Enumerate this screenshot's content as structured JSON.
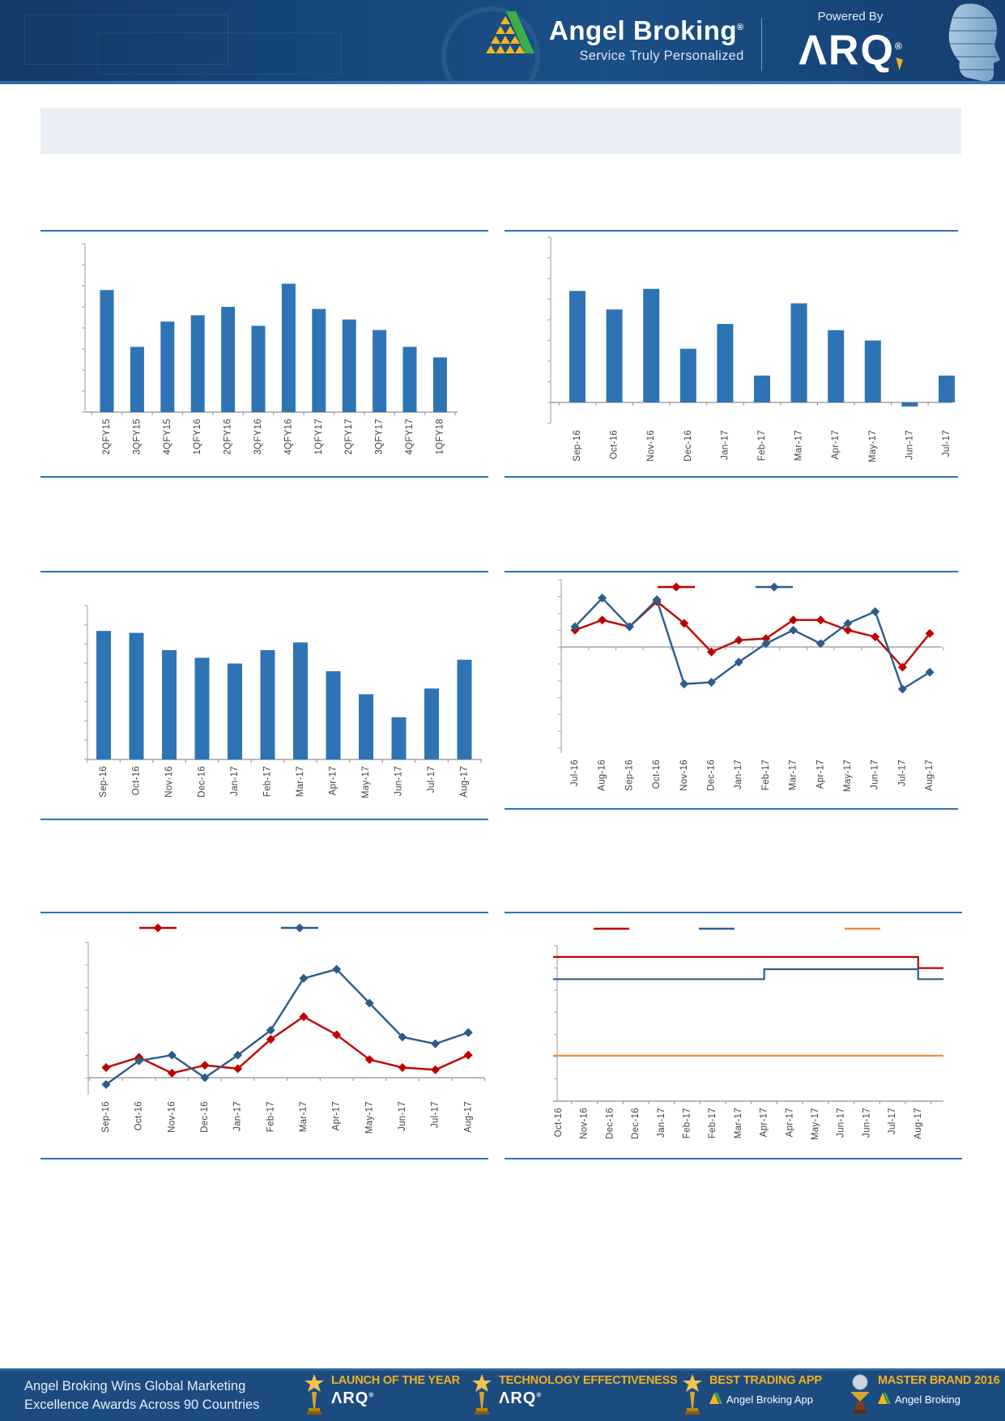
{
  "header": {
    "brand": "Angel Broking",
    "brand_registered": "®",
    "tagline": "Service Truly Personalized",
    "powered_by": "Powered By",
    "arq_logo": "ΛRQ",
    "arq_registered": "®",
    "colors": {
      "navy": "#16477c",
      "gold": "#f2b01e",
      "green": "#3bae49"
    }
  },
  "title_box": {
    "text": ""
  },
  "chart_data": [
    {
      "id": "quarterly-bar",
      "type": "bar",
      "title": "",
      "categories": [
        "2QFY15",
        "3QFY15",
        "4QFY15",
        "1QFY16",
        "2QFY16",
        "3QFY16",
        "4QFY16",
        "1QFY17",
        "2QFY17",
        "3QFY17",
        "4QFY17",
        "1QFY18"
      ],
      "values": [
        5.8,
        3.1,
        4.3,
        4.6,
        5.0,
        4.1,
        6.1,
        4.9,
        4.4,
        3.9,
        3.1,
        2.6
      ],
      "bar_color": "#2e74b5",
      "xlabel": "",
      "ylabel": "",
      "ylim": [
        0,
        8
      ],
      "y_tick_labels_visible": false,
      "grid": false
    },
    {
      "id": "monthly-bar-1",
      "type": "bar",
      "title": "",
      "categories": [
        "Sep-16",
        "Oct-16",
        "Nov-16",
        "Dec-16",
        "Jan-17",
        "Feb-17",
        "Mar-17",
        "Apr-17",
        "May-17",
        "Jun-17",
        "Jul-17"
      ],
      "values": [
        5.4,
        4.5,
        5.5,
        2.6,
        3.8,
        1.3,
        4.8,
        3.5,
        3.0,
        -0.2,
        1.3
      ],
      "bar_color": "#2e74b5",
      "xlabel": "",
      "ylabel": "",
      "ylim": [
        -1,
        8
      ],
      "y_tick_labels_visible": false,
      "grid": false
    },
    {
      "id": "monthly-bar-2",
      "type": "bar",
      "title": "",
      "categories": [
        "Sep-16",
        "Oct-16",
        "Nov-16",
        "Dec-16",
        "Jan-17",
        "Feb-17",
        "Mar-17",
        "Apr-17",
        "May-17",
        "Jun-17",
        "Jul-17",
        "Aug-17"
      ],
      "values": [
        6.7,
        6.6,
        5.7,
        5.3,
        5.0,
        5.7,
        6.1,
        4.6,
        3.4,
        2.2,
        3.7,
        5.2
      ],
      "bar_color": "#2e74b5",
      "xlabel": "",
      "ylabel": "",
      "ylim": [
        0,
        8
      ],
      "y_tick_labels_visible": false,
      "grid": false
    },
    {
      "id": "dual-line-1",
      "type": "line",
      "title": "",
      "categories": [
        "Jul-16",
        "Aug-16",
        "Sep-16",
        "Oct-16",
        "Nov-16",
        "Dec-16",
        "Jan-17",
        "Feb-17",
        "Mar-17",
        "Apr-17",
        "May-17",
        "Jun-17",
        "Jul-17",
        "Aug-17"
      ],
      "series": [
        {
          "name": "red-series",
          "color": "#c00000",
          "values": [
            1.0,
            1.6,
            1.2,
            2.7,
            1.4,
            -0.3,
            0.4,
            0.5,
            1.6,
            1.6,
            1.0,
            0.6,
            -1.2,
            0.8
          ]
        },
        {
          "name": "blue-series",
          "color": "#2b5c8c",
          "values": [
            1.2,
            2.9,
            1.2,
            2.8,
            -2.2,
            -2.1,
            -0.9,
            0.2,
            1.0,
            0.2,
            1.4,
            2.1,
            -2.5,
            -1.5
          ]
        }
      ],
      "marker": "diamond",
      "legend_position": "top",
      "legend_labels_visible": false,
      "ylim": [
        -6.3,
        4
      ],
      "y_tick_labels_visible": false,
      "grid": false
    },
    {
      "id": "dual-line-2",
      "type": "line",
      "title": "",
      "categories": [
        "Sep-16",
        "Oct-16",
        "Nov-16",
        "Dec-16",
        "Jan-17",
        "Feb-17",
        "Mar-17",
        "Apr-17",
        "May-17",
        "Jun-17",
        "Jul-17",
        "Aug-17"
      ],
      "series": [
        {
          "name": "red-series",
          "color": "#c00000",
          "values": [
            0.45,
            0.9,
            0.2,
            0.55,
            0.4,
            1.7,
            2.7,
            1.9,
            0.8,
            0.45,
            0.35,
            1.0
          ]
        },
        {
          "name": "blue-series",
          "color": "#2b5c8c",
          "values": [
            -0.3,
            0.75,
            1.0,
            0.0,
            1.0,
            2.1,
            4.4,
            4.8,
            3.3,
            1.8,
            1.5,
            2.0
          ]
        }
      ],
      "marker": "diamond",
      "legend_position": "top",
      "legend_labels_visible": false,
      "ylim": [
        -0.75,
        6
      ],
      "y_tick_labels_visible": false,
      "grid": false
    },
    {
      "id": "triple-step-line",
      "type": "line",
      "line_style": "step",
      "title": "",
      "categories": [
        "Oct-16",
        "Nov-16",
        "Dec-16",
        "Dec-16",
        "Jan-17",
        "Feb-17",
        "Feb-17",
        "Mar-17",
        "Apr-17",
        "Apr-17",
        "May-17",
        "Jun-17",
        "Jun-17",
        "Jul-17",
        "Aug-17"
      ],
      "series": [
        {
          "name": "red-series",
          "color": "#c00000",
          "values": [
            6.5,
            6.5,
            6.5,
            6.5,
            6.5,
            6.5,
            6.5,
            6.5,
            6.5,
            6.5,
            6.5,
            6.5,
            6.5,
            6.5,
            6.0
          ]
        },
        {
          "name": "blue-series",
          "color": "#2e5f8f",
          "values": [
            5.5,
            5.5,
            5.5,
            5.5,
            5.5,
            5.5,
            5.5,
            5.5,
            5.95,
            5.95,
            5.95,
            5.95,
            5.95,
            5.95,
            5.5
          ]
        },
        {
          "name": "orange-series",
          "color": "#e78c3c",
          "values": [
            2.05,
            2.05,
            2.05,
            2.05,
            2.05,
            2.05,
            2.05,
            2.05,
            2.05,
            2.05,
            2.05,
            2.05,
            2.05,
            2.05,
            2.05
          ]
        }
      ],
      "marker": "none",
      "legend_position": "top",
      "legend_labels_visible": false,
      "ylim": [
        0,
        7
      ],
      "y_tick_labels_visible": false,
      "grid": false
    }
  ],
  "footer": {
    "headline_line1": "Angel Broking Wins Global Marketing",
    "headline_line2": "Excellence Awards Across 90 Countries",
    "awards": [
      {
        "title": "LAUNCH OF THE YEAR",
        "subtitle": "ΛRQ",
        "icon": "trophy-icon"
      },
      {
        "title": "TECHNOLOGY EFFECTIVENESS",
        "subtitle": "ΛRQ",
        "icon": "trophy-icon"
      },
      {
        "title": "BEST TRADING APP",
        "subtitle": "Angel Broking App",
        "icon": "trophy-icon"
      },
      {
        "title": "MASTER BRAND 2016",
        "subtitle": "Angel Broking",
        "icon": "globe-trophy-icon"
      }
    ]
  }
}
